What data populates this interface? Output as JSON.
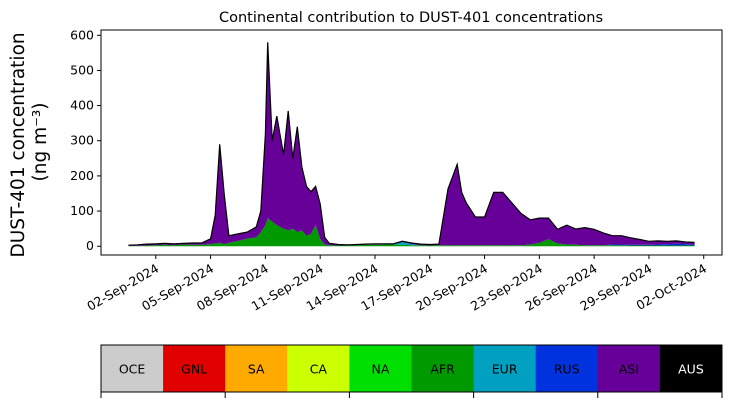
{
  "chart_data": {
    "type": "area",
    "stacked": true,
    "title": "Continental contribution to DUST-401 concentrations",
    "ylabel_line1": "DUST-401 concentration",
    "ylabel_line2": "(ng m⁻³)",
    "xlabel": "",
    "ylim": [
      -25,
      615
    ],
    "xlim": [
      "2024-08-30",
      "2024-10-03"
    ],
    "y_ticks": [
      0,
      100,
      200,
      300,
      400,
      500,
      600
    ],
    "x_ticks": [
      {
        "date": "2024-09-02",
        "label": "02-Sep-2024"
      },
      {
        "date": "2024-09-05",
        "label": "05-Sep-2024"
      },
      {
        "date": "2024-09-08",
        "label": "08-Sep-2024"
      },
      {
        "date": "2024-09-11",
        "label": "11-Sep-2024"
      },
      {
        "date": "2024-09-14",
        "label": "14-Sep-2024"
      },
      {
        "date": "2024-09-17",
        "label": "17-Sep-2024"
      },
      {
        "date": "2024-09-20",
        "label": "20-Sep-2024"
      },
      {
        "date": "2024-09-23",
        "label": "23-Sep-2024"
      },
      {
        "date": "2024-09-26",
        "label": "26-Sep-2024"
      },
      {
        "date": "2024-09-29",
        "label": "29-Sep-2024"
      },
      {
        "date": "2024-10-02",
        "label": "02-Oct-2024"
      }
    ],
    "x": [
      "2024-08-31 12:00",
      "2024-09-01 00:00",
      "2024-09-01 12:00",
      "2024-09-02 00:00",
      "2024-09-02 12:00",
      "2024-09-03 00:00",
      "2024-09-03 12:00",
      "2024-09-04 00:00",
      "2024-09-04 12:00",
      "2024-09-05 00:00",
      "2024-09-05 06:00",
      "2024-09-05 12:00",
      "2024-09-05 18:00",
      "2024-09-06 00:00",
      "2024-09-06 12:00",
      "2024-09-07 00:00",
      "2024-09-07 12:00",
      "2024-09-07 18:00",
      "2024-09-08 00:00",
      "2024-09-08 03:00",
      "2024-09-08 09:00",
      "2024-09-08 15:00",
      "2024-09-09 00:00",
      "2024-09-09 06:00",
      "2024-09-09 12:00",
      "2024-09-09 18:00",
      "2024-09-10 00:00",
      "2024-09-10 06:00",
      "2024-09-10 12:00",
      "2024-09-10 18:00",
      "2024-09-11 00:00",
      "2024-09-11 06:00",
      "2024-09-11 12:00",
      "2024-09-12 00:00",
      "2024-09-12 12:00",
      "2024-09-13 00:00",
      "2024-09-13 12:00",
      "2024-09-14 00:00",
      "2024-09-14 12:00",
      "2024-09-15 00:00",
      "2024-09-15 12:00",
      "2024-09-16 00:00",
      "2024-09-16 12:00",
      "2024-09-17 00:00",
      "2024-09-17 12:00",
      "2024-09-18 00:00",
      "2024-09-18 12:00",
      "2024-09-18 18:00",
      "2024-09-19 00:00",
      "2024-09-19 12:00",
      "2024-09-20 00:00",
      "2024-09-20 12:00",
      "2024-09-21 00:00",
      "2024-09-21 12:00",
      "2024-09-22 00:00",
      "2024-09-22 12:00",
      "2024-09-23 00:00",
      "2024-09-23 12:00",
      "2024-09-24 00:00",
      "2024-09-24 12:00",
      "2024-09-25 00:00",
      "2024-09-25 12:00",
      "2024-09-26 00:00",
      "2024-09-26 12:00",
      "2024-09-27 00:00",
      "2024-09-27 12:00",
      "2024-09-28 00:00",
      "2024-09-28 12:00",
      "2024-09-29 00:00",
      "2024-09-29 12:00",
      "2024-09-30 00:00",
      "2024-09-30 12:00",
      "2024-10-01 00:00",
      "2024-10-01 12:00"
    ],
    "series": [
      {
        "name": "OCE",
        "color": "#cccccc",
        "values": [
          0,
          0,
          0,
          0,
          0,
          0,
          0,
          0,
          0,
          0,
          0,
          0,
          0,
          0,
          0,
          0,
          0,
          0,
          0,
          0,
          0,
          0,
          0,
          0,
          0,
          0,
          0,
          0,
          0,
          0,
          0,
          0,
          0,
          0,
          0,
          0,
          0,
          0,
          0,
          0,
          0,
          0,
          0,
          0,
          0,
          0,
          0,
          0,
          0,
          0,
          0,
          0,
          0,
          0,
          0,
          0,
          0,
          0,
          0,
          0,
          0,
          0,
          0,
          0,
          0,
          0,
          0,
          0,
          0,
          0,
          0,
          0,
          0,
          0
        ]
      },
      {
        "name": "GNL",
        "color": "#e00000",
        "values": [
          0,
          0,
          0,
          0,
          0,
          0,
          0,
          0,
          0,
          0,
          0,
          0,
          0,
          0,
          0,
          0,
          0,
          0,
          0,
          0,
          0,
          0,
          0,
          0,
          0,
          0,
          0,
          0,
          0,
          0,
          0,
          0,
          0,
          0,
          0,
          0,
          0,
          0,
          0,
          0,
          0,
          0,
          0,
          0,
          0,
          0,
          0,
          0,
          0,
          0,
          0,
          0,
          0,
          0,
          0,
          0,
          0,
          0,
          0,
          0,
          0,
          0,
          0,
          0,
          0,
          0,
          0,
          0,
          0,
          0,
          0,
          0,
          0,
          0
        ]
      },
      {
        "name": "SA",
        "color": "#ffaa00",
        "values": [
          0,
          0,
          0,
          0,
          0,
          0,
          0,
          0,
          0,
          0,
          0,
          0,
          0,
          0,
          0,
          0,
          0,
          0,
          0,
          0,
          0,
          0,
          0,
          0,
          0,
          0,
          0,
          0,
          0,
          0,
          0,
          0,
          0,
          0,
          0,
          0,
          0,
          0,
          0,
          0,
          0,
          0,
          0,
          0,
          0,
          0,
          0,
          0,
          0,
          0,
          0,
          0,
          0,
          0,
          0,
          0,
          0,
          0,
          0,
          0,
          0,
          0,
          0,
          0,
          0,
          0,
          0,
          0,
          0,
          0,
          0,
          0,
          0,
          0
        ]
      },
      {
        "name": "CA",
        "color": "#ccff00",
        "values": [
          0,
          0,
          0,
          0,
          0,
          0,
          0,
          0,
          0,
          0,
          0,
          0,
          0,
          0,
          0,
          0,
          0,
          0,
          0,
          0,
          0,
          0,
          0,
          0,
          0,
          0,
          0,
          0,
          0,
          0,
          0,
          0,
          0,
          0,
          0,
          0,
          0,
          0,
          0,
          0,
          0,
          0,
          0,
          0,
          0,
          0,
          0,
          0,
          0,
          0,
          0,
          0,
          0,
          0,
          0,
          0,
          0,
          0,
          0,
          0,
          0,
          0,
          0,
          0,
          0,
          0,
          0,
          0,
          0,
          0,
          0,
          0,
          0,
          0
        ]
      },
      {
        "name": "NA",
        "color": "#00e000",
        "values": [
          0,
          0,
          0,
          0,
          0,
          0,
          0,
          0,
          0,
          0,
          0,
          0,
          0,
          0,
          0,
          0,
          0,
          0,
          0,
          0,
          0,
          0,
          0,
          0,
          0,
          0,
          0,
          0,
          0,
          0,
          0,
          0,
          0,
          0,
          0,
          0,
          0,
          0,
          0,
          0,
          0,
          0,
          0,
          0,
          0,
          0,
          0,
          0,
          0,
          0,
          0,
          0,
          0,
          0,
          0,
          0,
          0,
          0,
          0,
          0,
          0,
          0,
          0,
          0,
          0,
          0,
          0,
          0,
          0,
          0,
          0,
          0,
          0,
          0
        ]
      },
      {
        "name": "AFR",
        "color": "#009900",
        "values": [
          1,
          1,
          2,
          3,
          4,
          3,
          5,
          4,
          4,
          6,
          8,
          10,
          6,
          10,
          15,
          22,
          25,
          40,
          60,
          80,
          70,
          60,
          50,
          45,
          50,
          40,
          45,
          30,
          35,
          60,
          20,
          5,
          3,
          2,
          2,
          3,
          4,
          4,
          5,
          5,
          4,
          3,
          3,
          2,
          3,
          3,
          3,
          3,
          3,
          3,
          3,
          3,
          3,
          3,
          3,
          5,
          10,
          20,
          8,
          5,
          4,
          3,
          3,
          3,
          3,
          3,
          2,
          2,
          2,
          2,
          2,
          2,
          2,
          2
        ]
      },
      {
        "name": "EUR",
        "color": "#00a0c0",
        "values": [
          0,
          0,
          0,
          0,
          0,
          0,
          0,
          0,
          0,
          0,
          0,
          0,
          0,
          0,
          0,
          0,
          0,
          0,
          0,
          0,
          0,
          0,
          0,
          0,
          0,
          0,
          0,
          0,
          0,
          0,
          0,
          0,
          0,
          0,
          0,
          0,
          0,
          0,
          0,
          0,
          8,
          3,
          0,
          0,
          0,
          0,
          0,
          0,
          0,
          0,
          0,
          0,
          0,
          0,
          0,
          0,
          0,
          0,
          0,
          0,
          0,
          0,
          0,
          0,
          0,
          0,
          0,
          0,
          0,
          0,
          0,
          0,
          0,
          0
        ]
      },
      {
        "name": "RUS",
        "color": "#0033dd",
        "values": [
          0,
          0,
          0,
          0,
          0,
          0,
          0,
          0,
          0,
          0,
          0,
          0,
          0,
          0,
          0,
          0,
          0,
          0,
          0,
          0,
          0,
          0,
          0,
          0,
          0,
          0,
          0,
          0,
          0,
          0,
          0,
          0,
          0,
          0,
          0,
          0,
          0,
          0,
          0,
          0,
          0,
          0,
          0,
          0,
          0,
          0,
          0,
          0,
          0,
          0,
          0,
          0,
          0,
          0,
          0,
          0,
          0,
          0,
          0,
          0,
          0,
          0,
          0,
          0,
          2,
          2,
          2,
          2,
          2,
          3,
          4,
          5,
          4,
          3
        ]
      },
      {
        "name": "ASI",
        "color": "#660099",
        "values": [
          2,
          3,
          4,
          4,
          4,
          4,
          3,
          5,
          5,
          15,
          80,
          280,
          140,
          20,
          20,
          18,
          30,
          60,
          260,
          500,
          230,
          310,
          210,
          340,
          200,
          300,
          180,
          140,
          120,
          110,
          100,
          20,
          5,
          3,
          2,
          2,
          2,
          3,
          2,
          2,
          2,
          3,
          3,
          3,
          3,
          160,
          230,
          150,
          120,
          80,
          80,
          150,
          150,
          120,
          90,
          70,
          70,
          60,
          40,
          55,
          45,
          50,
          45,
          35,
          25,
          25,
          20,
          15,
          10,
          10,
          8,
          8,
          6,
          6
        ]
      },
      {
        "name": "AUS",
        "color": "#000000",
        "values": [
          0,
          0,
          0,
          0,
          0,
          0,
          0,
          0,
          0,
          0,
          0,
          0,
          0,
          0,
          0,
          0,
          0,
          0,
          0,
          0,
          0,
          0,
          0,
          0,
          0,
          0,
          0,
          0,
          0,
          0,
          0,
          0,
          0,
          0,
          0,
          0,
          0,
          0,
          0,
          0,
          0,
          0,
          0,
          0,
          0,
          0,
          0,
          0,
          0,
          0,
          0,
          0,
          0,
          0,
          0,
          0,
          0,
          0,
          0,
          0,
          0,
          0,
          0,
          0,
          0,
          0,
          0,
          0,
          0,
          0,
          0,
          0,
          0,
          0
        ]
      }
    ],
    "legend_placement": "bottom",
    "grid": false
  }
}
